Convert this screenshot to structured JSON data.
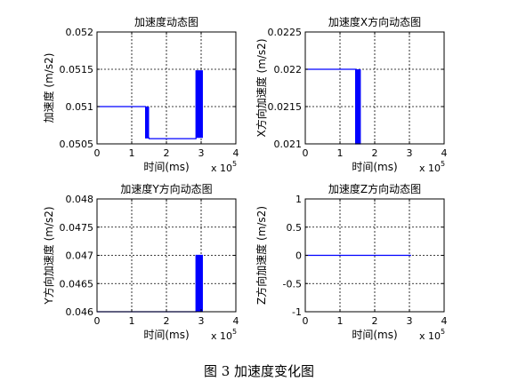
{
  "caption": "图 3  加速度变化图",
  "colors": {
    "series": "#0000ff",
    "axes": "#000000",
    "grid": "#000000",
    "background": "#ffffff"
  },
  "chart_data": [
    {
      "type": "line",
      "title": "加速度动态图",
      "xlabel": "时间(ms)",
      "ylabel": "加速度 (m/s2)",
      "x_exponent": "x 10^5",
      "x_exp_base": "x 10",
      "x_exp_power": "5",
      "xlim": [
        0,
        4
      ],
      "ylim": [
        0.0505,
        0.052
      ],
      "xticks": [
        0,
        1,
        2,
        3,
        4
      ],
      "xtick_labels": [
        "0",
        "1",
        "2",
        "3",
        "4"
      ],
      "yticks": [
        0.0505,
        0.051,
        0.0515,
        0.052
      ],
      "ytick_labels": [
        "0.0505",
        "0.051",
        "0.0515",
        "0.052"
      ],
      "grid": true,
      "series": [
        {
          "x": [
            0,
            1.4,
            1.4,
            1.5,
            1.5,
            2.85,
            2.85,
            3.05
          ],
          "y": [
            0.051,
            0.051,
            0.05058,
            0.05058,
            0.05057,
            0.05057,
            0.05148,
            0.05148
          ]
        }
      ],
      "bands": [
        {
          "x0": 1.4,
          "x1": 1.5,
          "y0": 0.05058,
          "y1": 0.051
        },
        {
          "x0": 2.85,
          "x1": 3.05,
          "y0": 0.05058,
          "y1": 0.05148
        }
      ]
    },
    {
      "type": "line",
      "title": "加速度X方向动态图",
      "xlabel": "时间(ms)",
      "ylabel": "X方向加速度 (m/s2)",
      "x_exponent": "x 10^5",
      "x_exp_base": "x 10",
      "x_exp_power": "5",
      "xlim": [
        0,
        4
      ],
      "ylim": [
        0.021,
        0.0225
      ],
      "xticks": [
        0,
        1,
        2,
        3,
        4
      ],
      "xtick_labels": [
        "0",
        "1",
        "2",
        "3",
        "4"
      ],
      "yticks": [
        0.021,
        0.0215,
        0.022,
        0.0225
      ],
      "ytick_labels": [
        "0.021",
        "0.0215",
        "0.022",
        "0.0225"
      ],
      "grid": true,
      "series": [
        {
          "x": [
            0,
            1.45,
            1.45,
            1.6
          ],
          "y": [
            0.022,
            0.022,
            0.021,
            0.021
          ]
        }
      ],
      "bands": [
        {
          "x0": 1.45,
          "x1": 1.6,
          "y0": 0.021,
          "y1": 0.022
        }
      ]
    },
    {
      "type": "line",
      "title": "加速度Y方向动态图",
      "xlabel": "时间(ms)",
      "ylabel": "Y方向加速度 (m/s2)",
      "x_exponent": "x 10^5",
      "x_exp_base": "x 10",
      "x_exp_power": "5",
      "xlim": [
        0,
        4
      ],
      "ylim": [
        0.046,
        0.048
      ],
      "xticks": [
        0,
        1,
        2,
        3,
        4
      ],
      "xtick_labels": [
        "0",
        "1",
        "2",
        "3",
        "4"
      ],
      "yticks": [
        0.046,
        0.0465,
        0.047,
        0.0475,
        0.048
      ],
      "ytick_labels": [
        "0.046",
        "0.0465",
        "0.047",
        "0.0475",
        "0.048"
      ],
      "grid": true,
      "series": [
        {
          "x": [
            0,
            2.85,
            2.85,
            3.05
          ],
          "y": [
            0.046,
            0.046,
            0.047,
            0.047
          ]
        }
      ],
      "bands": [
        {
          "x0": 2.85,
          "x1": 3.05,
          "y0": 0.046,
          "y1": 0.047
        }
      ]
    },
    {
      "type": "line",
      "title": "加速度Z方向动态图",
      "xlabel": "时间(ms)",
      "ylabel": "Z方向加速度 (m/s2)",
      "x_exponent": "x 10^5",
      "x_exp_base": "x 10",
      "x_exp_power": "5",
      "xlim": [
        0,
        4
      ],
      "ylim": [
        -1,
        1
      ],
      "xticks": [
        0,
        1,
        2,
        3,
        4
      ],
      "xtick_labels": [
        "0",
        "1",
        "2",
        "3",
        "4"
      ],
      "yticks": [
        -1,
        -0.5,
        0,
        0.5,
        1
      ],
      "ytick_labels": [
        "-1",
        "-0.5",
        "0",
        "0.5",
        "1"
      ],
      "grid": true,
      "series": [
        {
          "x": [
            0,
            3.05
          ],
          "y": [
            0,
            0
          ]
        }
      ],
      "bands": []
    }
  ]
}
